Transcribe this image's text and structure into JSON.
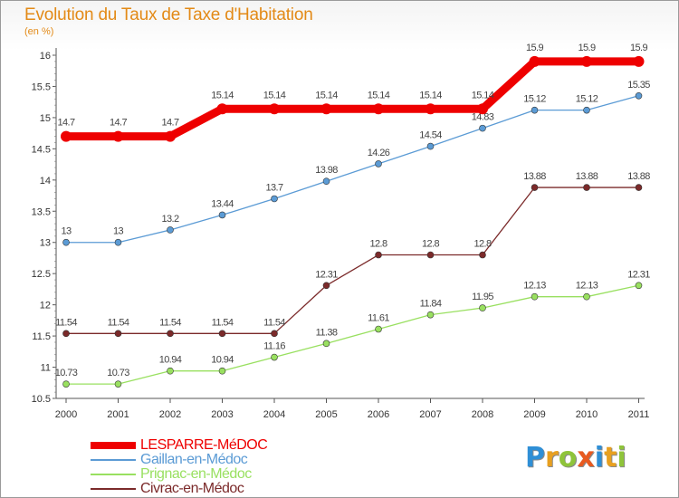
{
  "title": "Evolution du Taux de Taxe d'Habitation",
  "subtitle": "(en %)",
  "chart_data": {
    "type": "line",
    "title": "Evolution du Taux de Taxe d'Habitation",
    "ylabel": "(en %)",
    "xlabel": "",
    "x": [
      "2000",
      "2001",
      "2002",
      "2003",
      "2004",
      "2005",
      "2006",
      "2007",
      "2008",
      "2009",
      "2010",
      "2011"
    ],
    "ylim": [
      10.5,
      16
    ],
    "yticks": [
      "10.5",
      "11",
      "11.5",
      "12",
      "12.5",
      "13",
      "13.5",
      "14",
      "14.5",
      "15",
      "15.5",
      "16"
    ],
    "grid": false,
    "series": [
      {
        "name": "LESPARRE-MéDOC",
        "color": "#ee0000",
        "values": [
          14.7,
          14.7,
          14.7,
          15.14,
          15.14,
          15.14,
          15.14,
          15.14,
          15.14,
          15.9,
          15.9,
          15.9
        ],
        "labels": [
          "14.7",
          "14.7",
          "14.7",
          "15.14",
          "15.14",
          "15.14",
          "15.14",
          "15.14",
          "15.14",
          "15.9",
          "15.9",
          "15.9"
        ]
      },
      {
        "name": "Gaillan-en-Médoc",
        "color": "#5b9bd5",
        "values": [
          13,
          13,
          13.2,
          13.44,
          13.7,
          13.98,
          14.26,
          14.54,
          14.83,
          15.12,
          15.12,
          15.35
        ],
        "labels": [
          "13",
          "13",
          "13.2",
          "13.44",
          "13.7",
          "13.98",
          "14.26",
          "14.54",
          "14.83",
          "15.12",
          "15.12",
          "15.35"
        ]
      },
      {
        "name": "Prignac-en-Médoc",
        "color": "#99e060",
        "values": [
          10.73,
          10.73,
          10.94,
          10.94,
          11.16,
          11.38,
          11.61,
          11.84,
          11.95,
          12.13,
          12.13,
          12.31
        ],
        "labels": [
          "10.73",
          "10.73",
          "10.94",
          "10.94",
          "11.16",
          "11.38",
          "11.61",
          "11.84",
          "11.95",
          "12.13",
          "12.13",
          "12.31"
        ]
      },
      {
        "name": "Civrac-en-Médoc",
        "color": "#7b2a2a",
        "values": [
          11.54,
          11.54,
          11.54,
          11.54,
          11.54,
          12.31,
          12.8,
          12.8,
          12.8,
          13.88,
          13.88,
          13.88
        ],
        "labels": [
          "11.54",
          "11.54",
          "11.54",
          "11.54",
          "11.54",
          "12.31",
          "12.8",
          "12.8",
          "12.8",
          "13.88",
          "13.88",
          "13.88"
        ]
      }
    ]
  },
  "legend": {
    "items": [
      {
        "name": "LESPARRE-MéDOC",
        "color": "#ee0000"
      },
      {
        "name": "Gaillan-en-Médoc",
        "color": "#5b9bd5"
      },
      {
        "name": "Prignac-en-Médoc",
        "color": "#99e060"
      },
      {
        "name": "Civrac-en-Médoc",
        "color": "#7b2a2a"
      }
    ]
  },
  "logo": {
    "letters": [
      "P",
      "r",
      "o",
      "x",
      "i",
      "t",
      "i"
    ],
    "colors": [
      "#2f8fd6",
      "#e8a020",
      "#8fc43a",
      "#e85a20",
      "#2f8fd6",
      "#e8a020",
      "#8fc43a"
    ]
  }
}
